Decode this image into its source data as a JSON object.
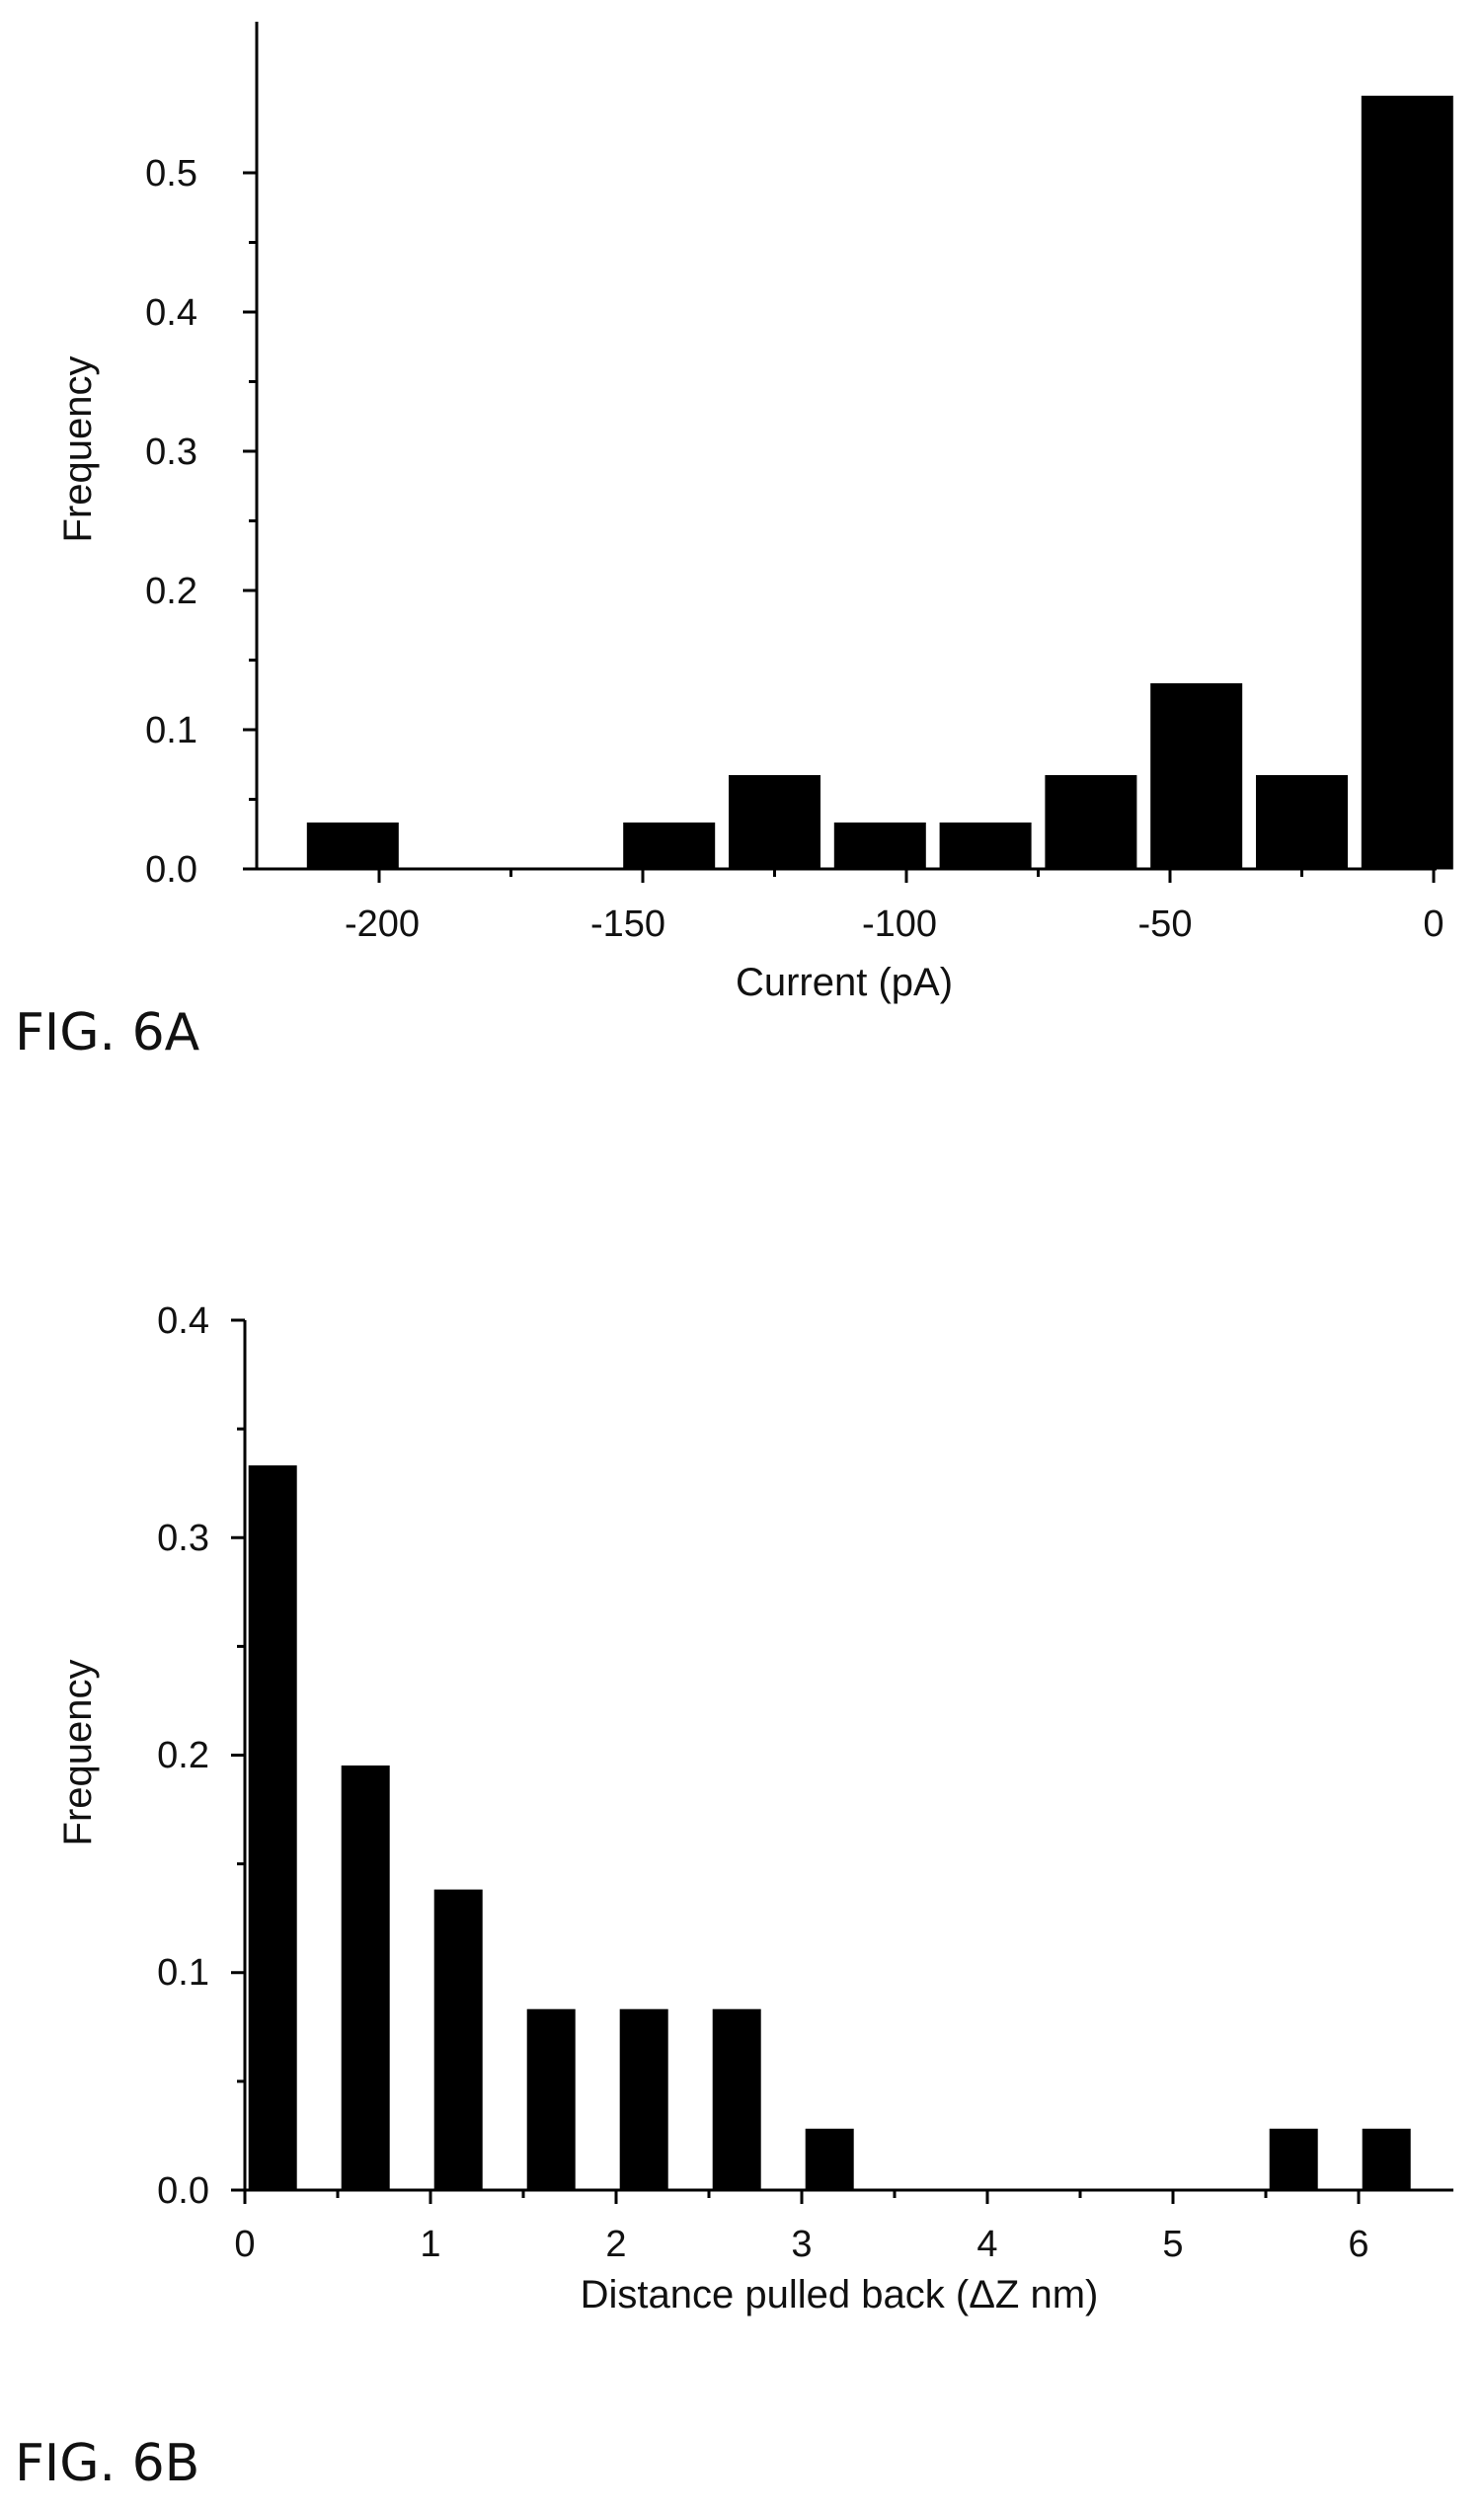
{
  "chart_data": [
    {
      "type": "bar",
      "x": [
        -205,
        -145,
        -125,
        -105,
        -85,
        -65,
        -45,
        -25,
        -5
      ],
      "values": [
        0.033,
        0.033,
        0.067,
        0.033,
        0.033,
        0.067,
        0.133,
        0.067,
        0.555
      ],
      "xlim": [
        -220,
        0
      ],
      "ylim": [
        0,
        0.6
      ],
      "xticks": [
        -200,
        -150,
        -100,
        -50,
        0
      ],
      "xtick_labels": [
        "-200",
        "-150",
        "-100",
        "-50",
        "0"
      ],
      "yticks": [
        0,
        0.1,
        0.2,
        0.3,
        0.4,
        0.5
      ],
      "ytick_labels": [
        "0.0",
        "0.1",
        "0.2",
        "0.3",
        "0.4",
        "0.5"
      ],
      "xlabel": "Current (pA)",
      "ylabel": "Frequency",
      "figure_label": "FIG. 6A",
      "grid": false,
      "bar_color": "#000000"
    },
    {
      "type": "bar",
      "x": [
        0.15,
        0.65,
        1.15,
        1.65,
        2.15,
        2.65,
        3.15,
        5.65,
        6.15
      ],
      "values": [
        0.333,
        0.195,
        0.138,
        0.083,
        0.083,
        0.083,
        0.028,
        0.028,
        0.028
      ],
      "xlim": [
        0,
        6.5
      ],
      "ylim": [
        0,
        0.4
      ],
      "xticks": [
        0,
        1,
        2,
        3,
        4,
        5,
        6
      ],
      "xtick_labels": [
        "0",
        "1",
        "2",
        "3",
        "4",
        "5",
        "6"
      ],
      "yticks": [
        0,
        0.1,
        0.2,
        0.3,
        0.4
      ],
      "ytick_labels": [
        "0.0",
        "0.1",
        "0.2",
        "0.3",
        "0.4"
      ],
      "xlabel": "Distance pulled back (ΔZ nm)",
      "ylabel": "Frequency",
      "figure_label": "FIG. 6B",
      "grid": false,
      "bar_color": "#000000"
    }
  ]
}
